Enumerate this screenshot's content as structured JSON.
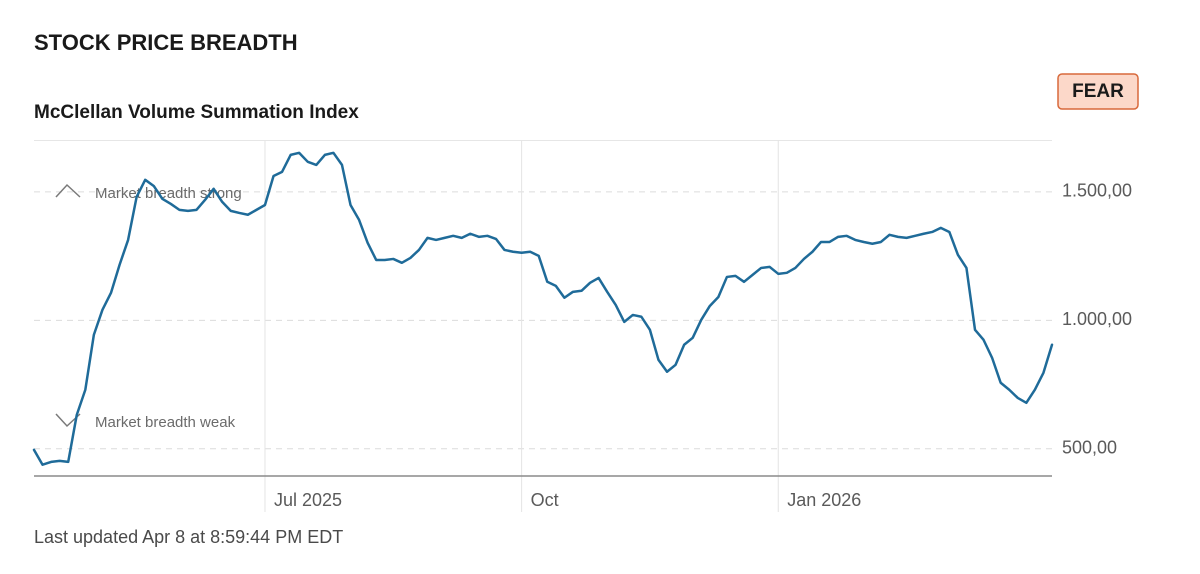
{
  "chart_data": {
    "type": "line",
    "title": "STOCK PRICE BREADTH",
    "subtitle": "McClellan Volume Summation Index",
    "rating": "FEAR",
    "annotations": [
      "Market breadth strong",
      "Market breadth weak"
    ],
    "footnote": "Last updated Apr 8 at 8:59:44 PM EDT",
    "categories": [
      null,
      null,
      null,
      null,
      null,
      null,
      null,
      null,
      null,
      null,
      null,
      null,
      null,
      null,
      null,
      null,
      null,
      null,
      null,
      null,
      null,
      null,
      null,
      null,
      null,
      null,
      null,
      "Jul 2025",
      null,
      null,
      null,
      null,
      null,
      null,
      null,
      null,
      null,
      null,
      null,
      null,
      null,
      null,
      null,
      null,
      null,
      null,
      null,
      null,
      null,
      null,
      null,
      null,
      null,
      null,
      null,
      null,
      null,
      "Oct",
      null,
      null,
      null,
      null,
      null,
      null,
      null,
      null,
      null,
      null,
      null,
      null,
      null,
      null,
      null,
      null,
      null,
      null,
      null,
      null,
      null,
      null,
      null,
      null,
      null,
      null,
      null,
      null,
      null,
      "Jan 2026",
      null,
      null,
      null,
      null,
      null,
      null,
      null,
      null,
      null,
      null,
      null,
      null,
      null,
      null,
      null,
      null,
      null,
      null,
      null,
      null,
      null,
      null,
      null,
      null,
      null,
      null,
      null,
      null,
      null,
      null,
      null,
      null
    ],
    "values": [
      496,
      438,
      449,
      453,
      449,
      632,
      730,
      944,
      1041,
      1107,
      1216,
      1313,
      1481,
      1547,
      1523,
      1473,
      1453,
      1430,
      1426,
      1430,
      1469,
      1512,
      1461,
      1426,
      1418,
      1411,
      1430,
      1449,
      1562,
      1578,
      1644,
      1652,
      1617,
      1605,
      1644,
      1652,
      1605,
      1449,
      1391,
      1302,
      1235,
      1235,
      1239,
      1224,
      1243,
      1274,
      1321,
      1313,
      1321,
      1329,
      1321,
      1337,
      1325,
      1329,
      1317,
      1274,
      1267,
      1263,
      1267,
      1251,
      1150,
      1134,
      1088,
      1111,
      1115,
      1146,
      1165,
      1111,
      1060,
      994,
      1021,
      1014,
      963,
      846,
      800,
      827,
      905,
      932,
      1002,
      1056,
      1091,
      1169,
      1173,
      1150,
      1177,
      1204,
      1208,
      1181,
      1185,
      1204,
      1239,
      1267,
      1305,
      1305,
      1325,
      1329,
      1313,
      1305,
      1298,
      1305,
      1333,
      1325,
      1321,
      1329,
      1337,
      1344,
      1360,
      1344,
      1255,
      1204,
      963,
      924,
      854,
      757,
      730,
      698,
      679,
      730,
      796,
      905
    ],
    "color": "#1f6b99",
    "ylim": [
      400,
      1700
    ],
    "yticks": [
      {
        "value": 500,
        "label": "500,00"
      },
      {
        "value": 1000,
        "label": "1.000,00"
      },
      {
        "value": 1500,
        "label": "1.500,00"
      }
    ],
    "grid": true
  }
}
